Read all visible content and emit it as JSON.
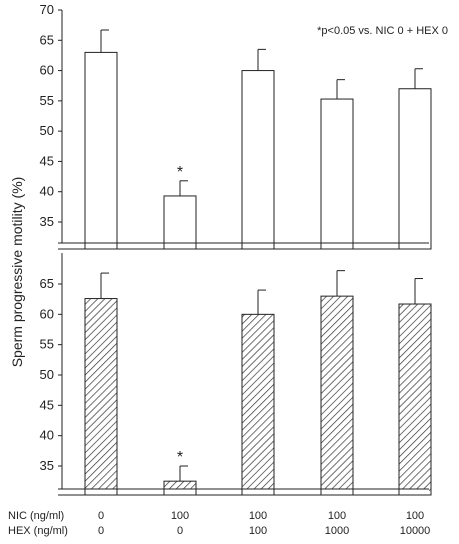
{
  "chart_data": {
    "type": "bar",
    "ylabel": "Sperm progressive motility  (%)",
    "annotation": "*p<0.05 vs. NIC 0 + HEX 0",
    "conditions": {
      "nic_label": "NIC (ng/ml)",
      "hex_label": "HEX (ng/ml)",
      "nic": [
        "0",
        "100",
        "100",
        "100",
        "100"
      ],
      "hex": [
        "0",
        "0",
        "100",
        "1000",
        "10000"
      ]
    },
    "panels": [
      {
        "name": "top",
        "fill": "open",
        "ylim": [
          30,
          70
        ],
        "yticks": [
          "70",
          "65",
          "60",
          "55",
          "50",
          "45",
          "40",
          "35"
        ],
        "values": [
          63.0,
          39.3,
          60.0,
          55.3,
          57.0
        ],
        "errors": [
          3.7,
          2.5,
          3.5,
          3.2,
          3.3
        ],
        "significant": [
          false,
          true,
          false,
          false,
          false
        ]
      },
      {
        "name": "bottom",
        "fill": "hatched",
        "ylim": [
          30,
          70
        ],
        "yticks": [
          "65",
          "60",
          "55",
          "50",
          "45",
          "40",
          "35"
        ],
        "values": [
          62.6,
          32.5,
          60.0,
          63.0,
          61.7
        ],
        "errors": [
          4.2,
          2.5,
          4.0,
          4.2,
          4.2
        ],
        "significant": [
          false,
          true,
          false,
          false,
          false
        ]
      }
    ],
    "marker": "*"
  }
}
